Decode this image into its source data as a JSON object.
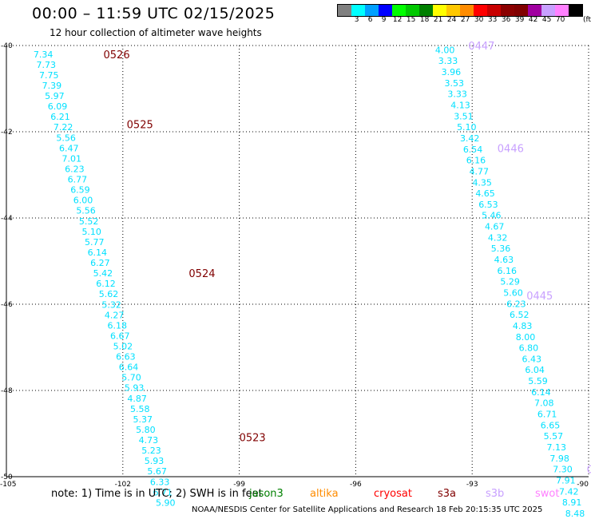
{
  "header": {
    "title": "00:00 – 11:59 UTC 02/15/2025",
    "subtitle": "12 hour collection of altimeter wave heights"
  },
  "colorbar": {
    "colors": [
      "#808080",
      "#00ffff",
      "#00a0ff",
      "#0000ff",
      "#00ff00",
      "#00c800",
      "#008000",
      "#ffff00",
      "#ffc800",
      "#ff8c00",
      "#ff0000",
      "#c80000",
      "#8b0000",
      "#800000",
      "#a000a0",
      "#c8a0ff",
      "#ff80ff",
      "#000000"
    ],
    "labels": [
      "3",
      "6",
      "9",
      "12",
      "15",
      "18",
      "21",
      "24",
      "27",
      "30",
      "33",
      "36",
      "39",
      "42",
      "45",
      "70"
    ],
    "unit": "(ft)"
  },
  "note": "note:  1) Time is in UTC;  2) SWH is in feet",
  "legend": [
    {
      "name": "jason3",
      "color": "#008000"
    },
    {
      "name": "altika",
      "color": "#ff8c00"
    },
    {
      "name": "cryosat",
      "color": "#ff0000"
    },
    {
      "name": "s3a",
      "color": "#800000"
    },
    {
      "name": "s3b",
      "color": "#c8a0ff"
    },
    {
      "name": "swot",
      "color": "#ff80ff"
    }
  ],
  "footer": "NOAA/NESDIS Center for Satellite Applications and Research    18 Feb 20:15:35 UTC 2025",
  "chart_data": {
    "type": "scatter",
    "xlim": [
      -105,
      -90
    ],
    "ylim": [
      -50,
      -40
    ],
    "x_ticks": [
      "-105",
      "-102",
      "-99",
      "-96",
      "-93",
      "-90"
    ],
    "y_ticks": [
      "-40",
      "-42",
      "-44",
      "-46",
      "-48",
      "-50"
    ],
    "grid": true,
    "series": [
      {
        "name": "s3a",
        "color": "#00e0ff",
        "start": [
          -104.05,
          -40.2
        ],
        "end": [
          -100.9,
          -50.6
        ],
        "values": [
          "7.34",
          "7.73",
          "7.75",
          "7.39",
          "5.97",
          "6.09",
          "6.21",
          "7.22",
          "5.56",
          "6.47",
          "7.01",
          "6.23",
          "6.77",
          "6.59",
          "6.00",
          "5.56",
          "5.52",
          "5.10",
          "5.77",
          "6.14",
          "6.27",
          "5.42",
          "6.12",
          "5.62",
          "5.32",
          "4.27",
          "6.18",
          "6.67",
          "5.02",
          "6.63",
          "6.64",
          "5.70",
          "5.93",
          "4.87",
          "5.58",
          "5.37",
          "5.80",
          "4.73",
          "5.23",
          "5.93",
          "5.67",
          "6.33",
          "6.71",
          "5.90"
        ],
        "pass_labels": [
          {
            "text": "0526",
            "x": -102.5,
            "y": -40.2
          },
          {
            "text": "0525",
            "x": -101.9,
            "y": -41.82
          },
          {
            "text": "0524",
            "x": -100.3,
            "y": -45.28
          },
          {
            "text": "0523",
            "x": -99.0,
            "y": -49.08
          }
        ]
      },
      {
        "name": "s3b",
        "color": "#00e0ff",
        "start": [
          -93.7,
          -40.1
        ],
        "end": [
          -90.35,
          -50.85
        ],
        "values": [
          "4.00",
          "3.33",
          "3.96",
          "3.53",
          "3.33",
          "4.13",
          "3.51",
          "5.10",
          "3.42",
          "6.54",
          "6.16",
          "4.77",
          "4.35",
          "4.65",
          "6.53",
          "5.46",
          "4.67",
          "4.32",
          "5.36",
          "4.63",
          "6.16",
          "5.29",
          "5.60",
          "6.23",
          "6.52",
          "4.83",
          "8.00",
          "6.80",
          "6.43",
          "6.04",
          "5.59",
          "6.14",
          "7.08",
          "6.71",
          "6.65",
          "5.57",
          "7.13",
          "7.98",
          "7.30",
          "7.91",
          "7.42",
          "8.91",
          "8.48"
        ],
        "pass_labels": [
          {
            "text": "0447",
            "x": -93.1,
            "y": -40.0
          },
          {
            "text": "0446",
            "x": -92.35,
            "y": -42.38
          },
          {
            "text": "0445",
            "x": -91.6,
            "y": -45.8
          },
          {
            "text": "04",
            "x": -90.05,
            "y": -49.82
          }
        ]
      }
    ]
  }
}
